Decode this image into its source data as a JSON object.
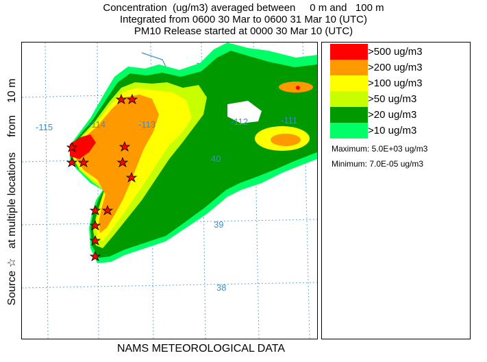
{
  "header": {
    "line1": "",
    "line2": "Concentration  (ug/m3) averaged between     0 m and   100 m",
    "line3": "Integrated from 0600 30 Mar to 0600 31 Mar 10 (UTC)",
    "line4": "PM10 Release started at 0000 30 Mar 10 (UTC)"
  },
  "side_label": "Source ☆   at multiple locations     from    10 m",
  "bottom_label": "NAMS METEOROLOGICAL DATA",
  "map": {
    "grid_labels": [
      "-115",
      "-114",
      "-113",
      "-112",
      "-111",
      "40",
      "39",
      "38"
    ],
    "grid_color": "#5aaad8",
    "outline_color": "#3a8fd0"
  },
  "legend": {
    "items": [
      {
        "label": ">500 ug/m3",
        "color": "#ff0000"
      },
      {
        "label": ">200 ug/m3",
        "color": "#ff9900"
      },
      {
        "label": ">100 ug/m3",
        "color": "#ffff00"
      },
      {
        "label": ">50 ug/m3",
        "color": "#c8ff00"
      },
      {
        "label": ">20 ug/m3",
        "color": "#009900"
      },
      {
        "label": ">10 ug/m3",
        "color": "#00ff66"
      }
    ],
    "maximum": "Maximum: 5.0E+03 ug/m3",
    "minimum": "Minimum: 7.0E-05 ug/m3"
  }
}
